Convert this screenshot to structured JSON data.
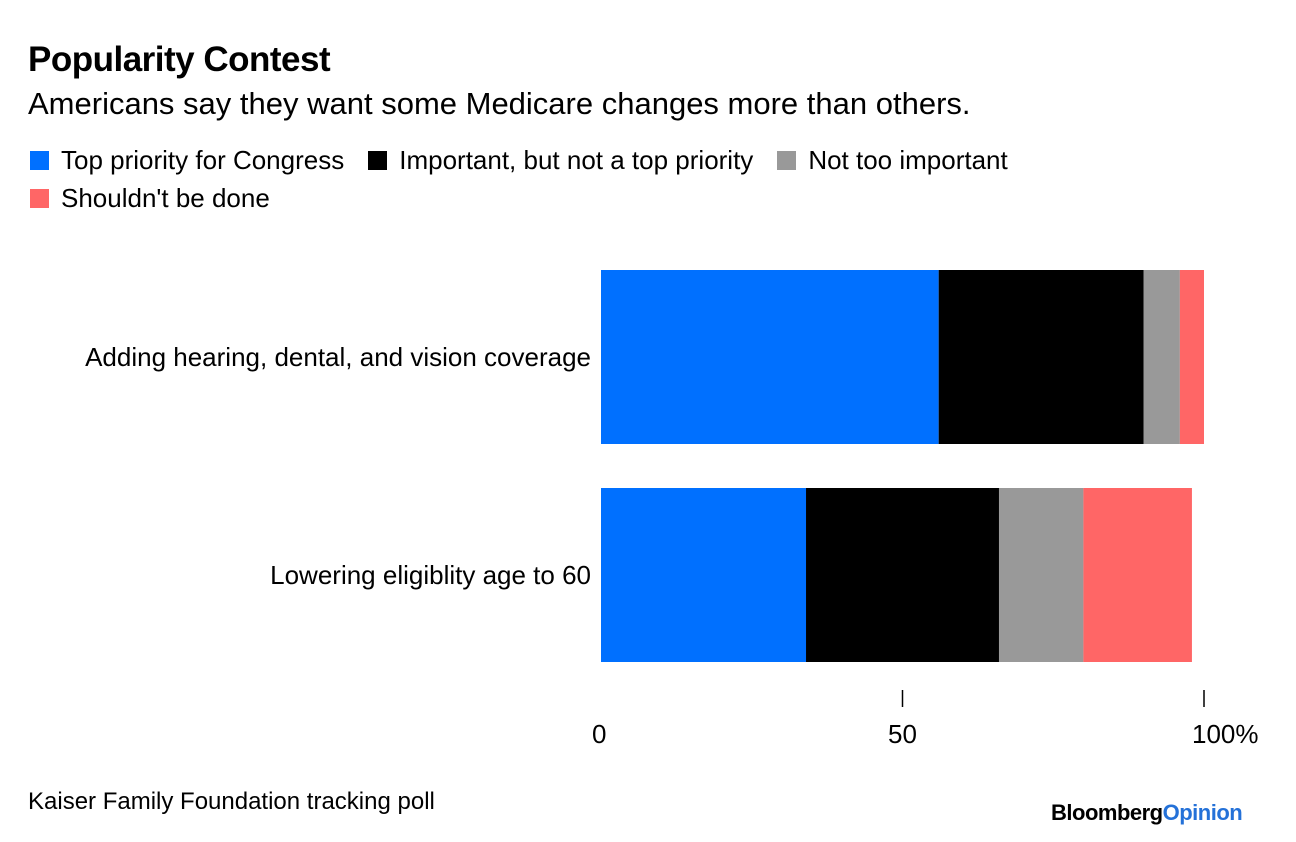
{
  "chart_data": {
    "type": "bar",
    "orientation": "horizontal",
    "stacked": true,
    "title": "Popularity Contest",
    "subtitle": "Americans say they want some Medicare changes more than others.",
    "categories": [
      "Adding hearing, dental, and vision coverage",
      "Lowering eligiblity age to 60"
    ],
    "series": [
      {
        "name": "Top priority for Congress",
        "color": "#0070ff",
        "values": [
          56,
          34
        ]
      },
      {
        "name": "Important, but not a top priority",
        "color": "#000000",
        "values": [
          34,
          32
        ]
      },
      {
        "name": "Not too important",
        "color": "#999999",
        "values": [
          6,
          14
        ]
      },
      {
        "name": "Shouldn't be done",
        "color": "#ff6666",
        "values": [
          4,
          18
        ]
      }
    ],
    "xlim": [
      0,
      100
    ],
    "x_ticks": [
      {
        "value": 0,
        "label": "0"
      },
      {
        "value": 50,
        "label": "50"
      },
      {
        "value": 100,
        "label": "100%"
      }
    ],
    "legend_position": "top-left",
    "grid": false,
    "source": "Kaiser Family Foundation tracking poll"
  },
  "branding": {
    "part1": "Bloomberg",
    "part2": "Opinion",
    "accent_color": "#2471d8"
  }
}
